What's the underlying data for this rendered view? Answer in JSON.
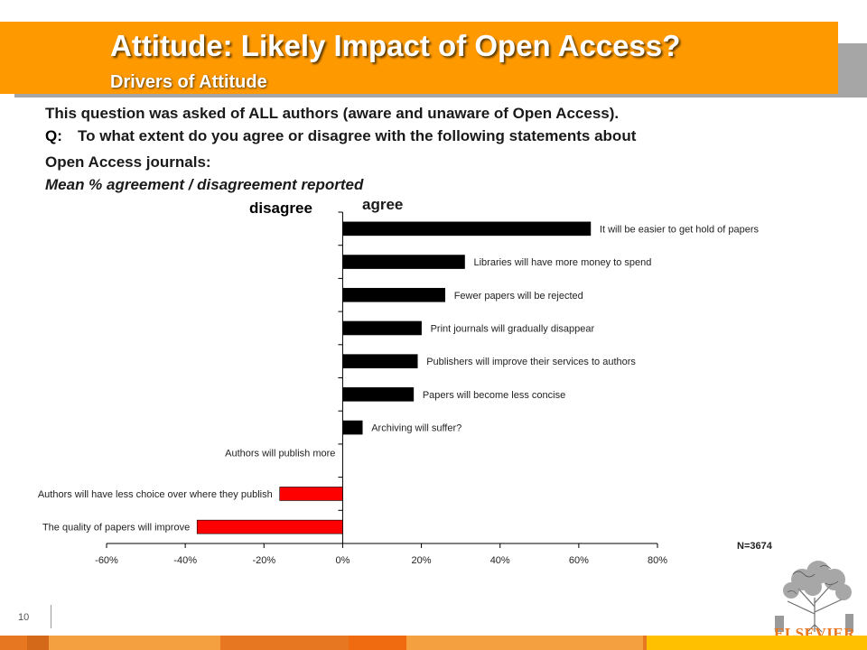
{
  "header": {
    "title": "Attitude: Likely Impact of Open Access?",
    "subtitle": "Drivers of Attitude"
  },
  "intro": {
    "line1": "This question was asked of ALL authors (aware and unaware of Open Access).",
    "q_label": "Q:",
    "question_line1": "To what extent do you agree or disagree with the following statements about",
    "question_line2": "Open Access journals:",
    "measure": "Mean % agreement / disagreement reported"
  },
  "labels": {
    "disagree": "disagree",
    "agree": "agree",
    "n": "N=3674"
  },
  "colors": {
    "header_orange": "#ff9900",
    "agree_bar": "#000000",
    "disagree_bar": "#ff0000",
    "disagree_text": "#e84a1a"
  },
  "page_number": "10",
  "brand": {
    "logo_text": "ELSEVIER",
    "logo_icon": "tree-of-knowledge-icon"
  },
  "chart_data": {
    "type": "bar",
    "orientation": "horizontal",
    "categories": [
      "It will be easier to get hold of papers",
      "Libraries will have more money to spend",
      "Fewer papers will be rejected",
      "Print journals will gradually disappear",
      "Publishers will improve their services to authors",
      "Papers will become less concise",
      "Archiving will suffer?",
      "Authors will publish more",
      "Authors will have less choice over where they publish",
      "The quality of papers will improve"
    ],
    "values": [
      63,
      31,
      26,
      20,
      19,
      18,
      5,
      0,
      -16,
      -37
    ],
    "xlim": [
      -60,
      80
    ],
    "xticks": [
      "-60%",
      "-40%",
      "-20%",
      "0%",
      "20%",
      "40%",
      "60%",
      "80%"
    ],
    "title": "",
    "xlabel": "",
    "ylabel": ""
  }
}
